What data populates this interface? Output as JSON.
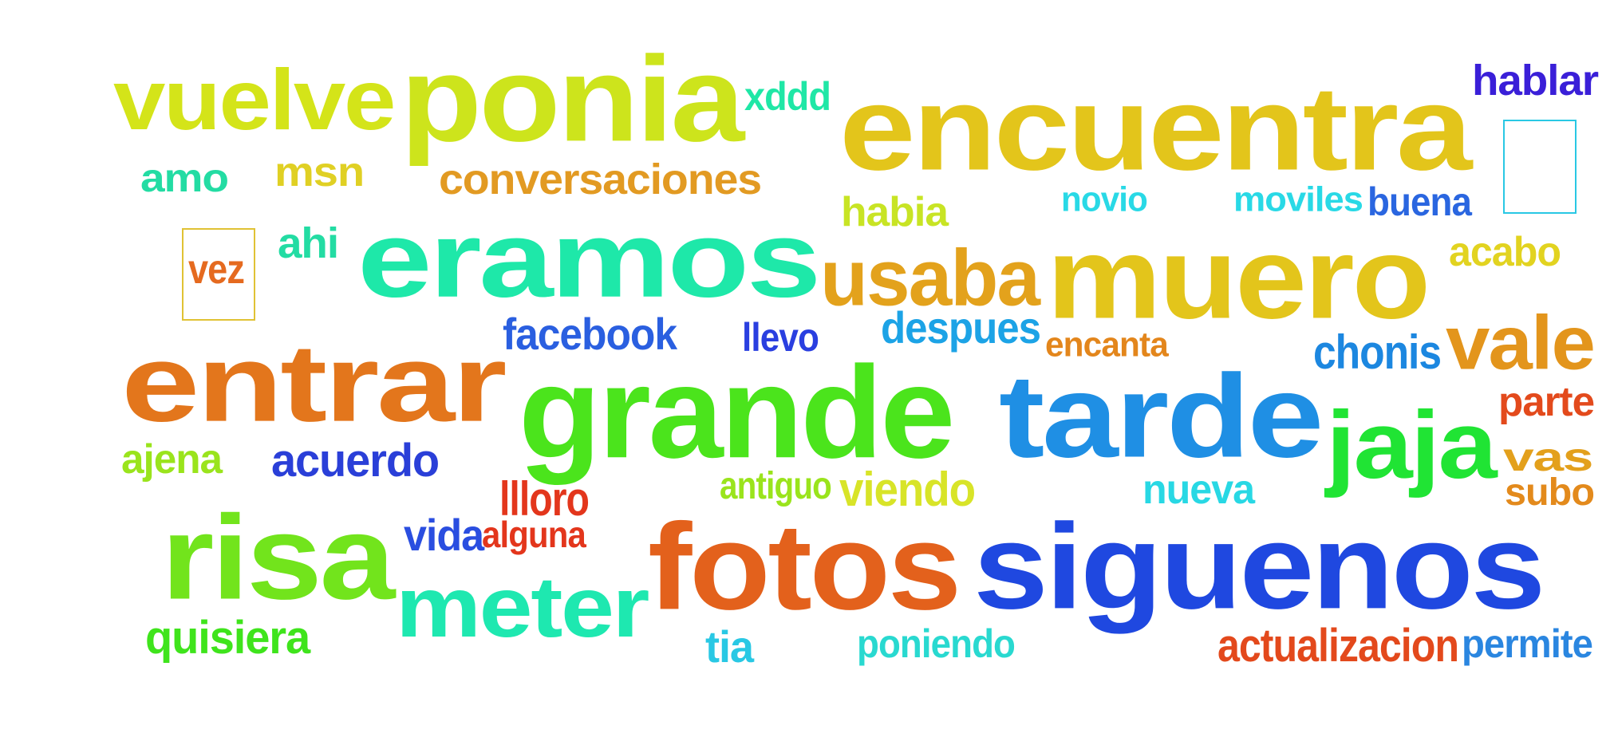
{
  "words": [
    {
      "text": "vuelve",
      "color": "#d4e419"
    },
    {
      "text": "ponia",
      "color": "#cde41c"
    },
    {
      "text": "xddd",
      "color": "#1fe7a6"
    },
    {
      "text": "encuentra",
      "color": "#e3c51b"
    },
    {
      "text": "hablar",
      "color": "#3a1fd8"
    },
    {
      "text": "amo",
      "color": "#23dca3"
    },
    {
      "text": "msn",
      "color": "#e0d024"
    },
    {
      "text": "conversaciones",
      "color": "#e29a22"
    },
    {
      "text": "habia",
      "color": "#c8e424"
    },
    {
      "text": "novio",
      "color": "#29d9e6"
    },
    {
      "text": "moviles",
      "color": "#29d9e6"
    },
    {
      "text": "buena",
      "color": "#2a66e0"
    },
    {
      "text": "vez",
      "color": "#e56a1f"
    },
    {
      "text": "ahi",
      "color": "#23dca3"
    },
    {
      "text": "eramos",
      "color": "#1ee8a9"
    },
    {
      "text": "usaba",
      "color": "#e3a21c"
    },
    {
      "text": "muero",
      "color": "#e3c51b"
    },
    {
      "text": "acabo",
      "color": "#e2d320"
    },
    {
      "text": "entrar",
      "color": "#e3761c"
    },
    {
      "text": "facebook",
      "color": "#2a5fe0"
    },
    {
      "text": "llevo",
      "color": "#2a3fe0"
    },
    {
      "text": "despues",
      "color": "#1ca3e6"
    },
    {
      "text": "encanta",
      "color": "#e3861c"
    },
    {
      "text": "chonis",
      "color": "#1c87e0"
    },
    {
      "text": "vale",
      "color": "#e3951c"
    },
    {
      "text": "grande",
      "color": "#4be41c"
    },
    {
      "text": "tarde",
      "color": "#1f8fe4"
    },
    {
      "text": "jaja",
      "color": "#20e434"
    },
    {
      "text": "parte",
      "color": "#e34a1c"
    },
    {
      "text": "ajena",
      "color": "#9ae41c"
    },
    {
      "text": "acuerdo",
      "color": "#2a3fd8"
    },
    {
      "text": "llloro",
      "color": "#e3361c"
    },
    {
      "text": "antiguo",
      "color": "#9ae41c"
    },
    {
      "text": "viendo",
      "color": "#d8e428"
    },
    {
      "text": "nueva",
      "color": "#28d8e4"
    },
    {
      "text": "vas",
      "color": "#e3a01c"
    },
    {
      "text": "subo",
      "color": "#e38a1c"
    },
    {
      "text": "risa",
      "color": "#72e41c"
    },
    {
      "text": "vida",
      "color": "#2a4ee0"
    },
    {
      "text": "alguna",
      "color": "#e3361c"
    },
    {
      "text": "meter",
      "color": "#1ee8b0"
    },
    {
      "text": "fotos",
      "color": "#e3611c"
    },
    {
      "text": "siguenos",
      "color": "#1f48e0"
    },
    {
      "text": "quisiera",
      "color": "#3fe41c"
    },
    {
      "text": "tia",
      "color": "#29c8e4"
    },
    {
      "text": "poniendo",
      "color": "#29d9d0"
    },
    {
      "text": "actualizacion",
      "color": "#e3491c"
    },
    {
      "text": "permite",
      "color": "#2a86e0"
    }
  ],
  "boxes": [
    {
      "name": "vez-box",
      "color": "#e0c234"
    },
    {
      "name": "cyan-box",
      "color": "#29c8e4"
    }
  ]
}
